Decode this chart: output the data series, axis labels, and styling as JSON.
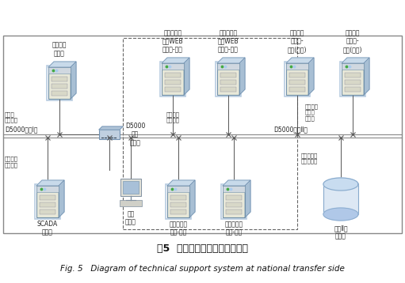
{
  "title_cn": "图5  国调侧技术支持系统结构图",
  "title_en": "Fig. 5   Diagram of technical support system at national transfer side",
  "bg_color": "#ffffff",
  "security_net1_label": "D5000安全I网",
  "security_net2_label": "D5000安全Ⅱ网",
  "font_size_label": 5.5,
  "font_size_annotation": 5.0,
  "font_size_title_cn": 9,
  "font_size_title_en": 7.5
}
